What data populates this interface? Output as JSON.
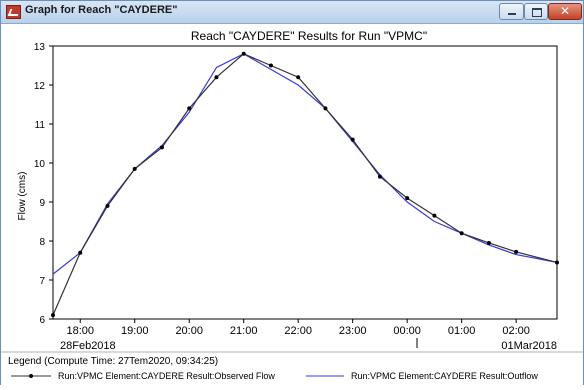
{
  "window": {
    "title": "Graph for Reach \"CAYDERE\"",
    "close_glyph": "✕"
  },
  "chart_data": {
    "type": "line",
    "title": "Reach \"CAYDERE\" Results for Run \"VPMC\"",
    "ylabel": "Flow (cms)",
    "xlabel": "",
    "ylim": [
      6,
      13
    ],
    "yticks": [
      "6",
      "7",
      "8",
      "9",
      "10",
      "11",
      "12",
      "13"
    ],
    "xlim": [
      17.5,
      26.75
    ],
    "xticks": [
      {
        "x": 18,
        "label": "18:00"
      },
      {
        "x": 19,
        "label": "19:00"
      },
      {
        "x": 20,
        "label": "20:00"
      },
      {
        "x": 21,
        "label": "21:00"
      },
      {
        "x": 22,
        "label": "22:00"
      },
      {
        "x": 23,
        "label": "23:00"
      },
      {
        "x": 24,
        "label": "00:00"
      },
      {
        "x": 25,
        "label": "01:00"
      },
      {
        "x": 26,
        "label": "02:00"
      }
    ],
    "date_labels": {
      "left": "28Feb2018",
      "right": "01Mar2018"
    },
    "grid": false,
    "legend_title": "Legend (Compute Time: 27Tem2020, 09:34:25)",
    "series": [
      {
        "name": "Run:VPMC Element:CAYDERE Result:Observed Flow",
        "color": "#333333",
        "markers": true,
        "x": [
          17.5,
          18.0,
          18.5,
          19.0,
          19.5,
          20.0,
          20.5,
          21.0,
          21.5,
          22.0,
          22.5,
          23.0,
          23.5,
          24.0,
          24.5,
          25.0,
          25.5,
          26.0,
          26.75
        ],
        "y": [
          6.1,
          7.7,
          8.9,
          9.85,
          10.4,
          11.4,
          12.2,
          12.8,
          12.5,
          12.2,
          11.4,
          10.6,
          9.65,
          9.1,
          8.65,
          8.2,
          7.95,
          7.72,
          7.45
        ]
      },
      {
        "name": "Run:VPMC Element:CAYDERE Result:Outflow",
        "color": "#3a3adb",
        "markers": false,
        "x": [
          17.5,
          18.0,
          18.5,
          19.0,
          19.5,
          20.0,
          20.5,
          21.0,
          21.5,
          22.0,
          22.5,
          23.0,
          23.5,
          24.0,
          24.5,
          25.0,
          25.5,
          26.0,
          26.75
        ],
        "y": [
          7.15,
          7.7,
          8.95,
          9.85,
          10.45,
          11.3,
          12.45,
          12.8,
          12.4,
          12.0,
          11.4,
          10.55,
          9.7,
          9.0,
          8.5,
          8.2,
          7.9,
          7.65,
          7.45
        ]
      }
    ]
  }
}
